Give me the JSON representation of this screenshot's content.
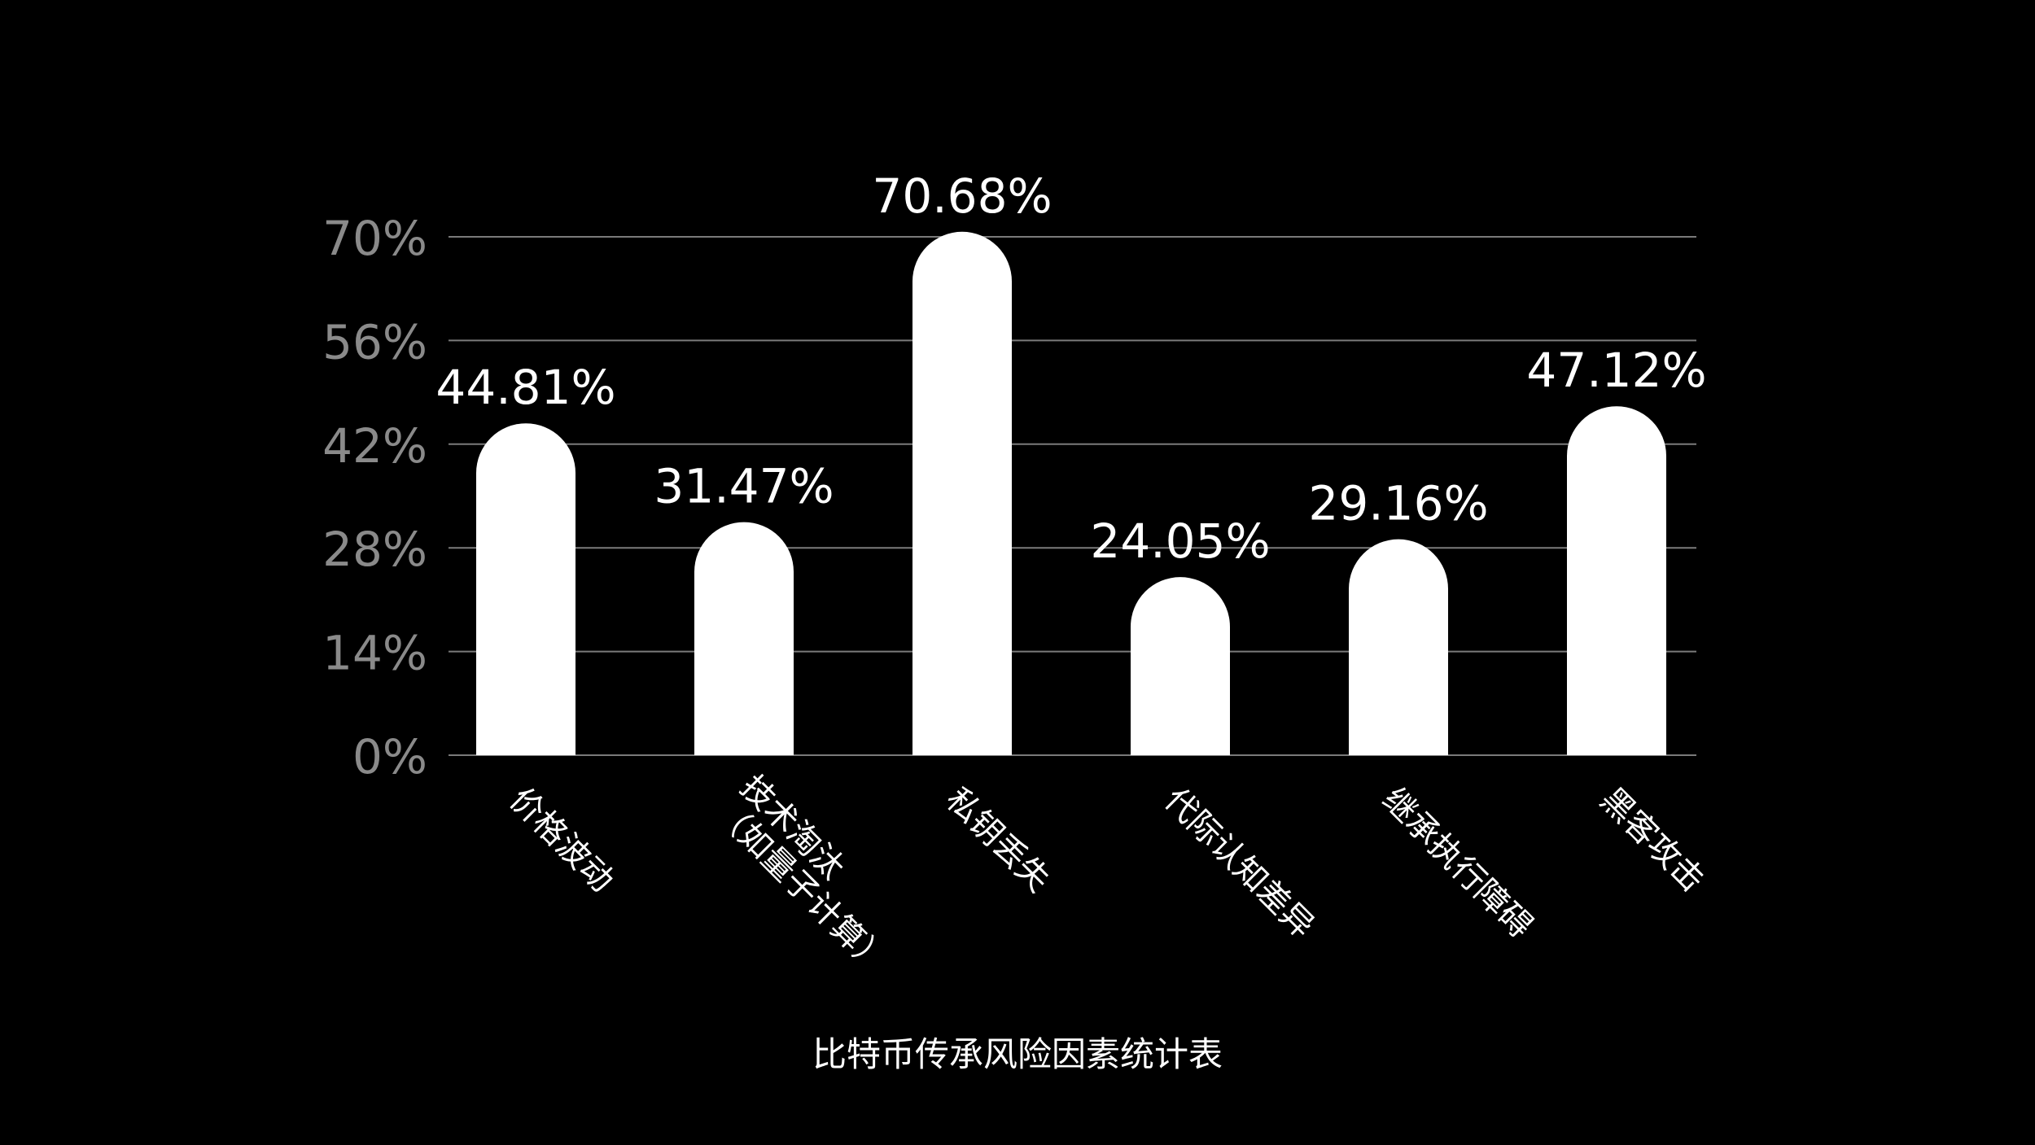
{
  "chart_data": {
    "type": "bar",
    "categories": [
      [
        "价格波动"
      ],
      [
        "技术淘汰",
        "（如量子计算）"
      ],
      [
        "私钥丢失"
      ],
      [
        "代际认知差异"
      ],
      [
        "继承执行障碍"
      ],
      [
        "黑客攻击"
      ]
    ],
    "values": [
      44.81,
      31.47,
      70.68,
      24.05,
      29.16,
      47.12
    ],
    "value_labels": [
      "44.81%",
      "31.47%",
      "70.68%",
      "24.05%",
      "29.16%",
      "47.12%"
    ],
    "y_ticks": [
      0,
      14,
      28,
      42,
      56,
      70
    ],
    "y_tick_labels": [
      "0%",
      "14%",
      "28%",
      "42%",
      "56%",
      "70%"
    ],
    "ylim": [
      0,
      70
    ],
    "grid": true,
    "legend": "none",
    "caption": "比特币传承风险因素统计表",
    "colors": {
      "background": "#000000",
      "bar": "#ffffff",
      "grid": "#7a7a7a",
      "tick_label": "#8a8a8a",
      "value_label": "#ffffff",
      "category_label": "#ffffff"
    }
  }
}
